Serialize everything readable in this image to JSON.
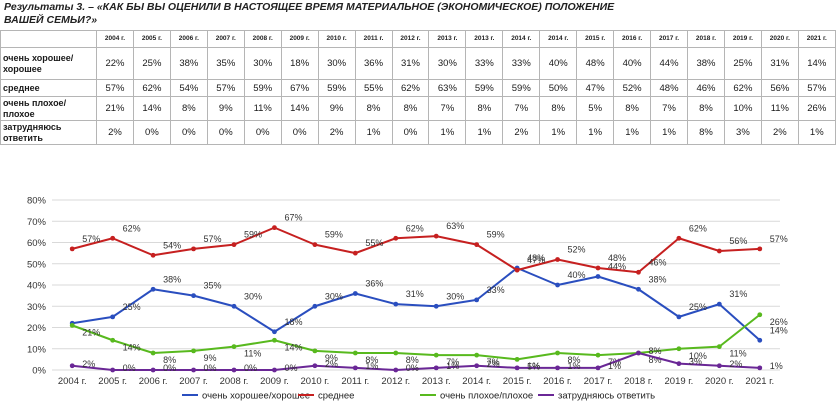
{
  "title": "Результаты 3. – «КАК БЫ ВЫ ОЦЕНИЛИ В НАСТОЯЩЕЕ ВРЕМЯ МАТЕРИАЛЬНОЕ (ЭКОНОМИЧЕСКОЕ) ПОЛОЖЕНИЕ ВАШЕЙ СЕМЬИ?»",
  "table": {
    "years": [
      "2004 г.",
      "2005 г.",
      "2006 г.",
      "2007 г.",
      "2008 г.",
      "2009 г.",
      "2010 г.",
      "2011 г.",
      "2012 г.",
      "2013 г.",
      "2013 г.",
      "2014 г.",
      "2014 г.",
      "2015 г.",
      "2016 г.",
      "2017 г.",
      "2018 г.",
      "2019 г.",
      "2020 г.",
      "2021 г."
    ],
    "rows": [
      {
        "label": "очень хорошее/хорошее",
        "values": [
          "22%",
          "25%",
          "38%",
          "35%",
          "30%",
          "18%",
          "30%",
          "36%",
          "31%",
          "30%",
          "33%",
          "33%",
          "40%",
          "48%",
          "40%",
          "44%",
          "38%",
          "25%",
          "31%",
          "14%"
        ]
      },
      {
        "label": "среднее",
        "values": [
          "57%",
          "62%",
          "54%",
          "57%",
          "59%",
          "67%",
          "59%",
          "55%",
          "62%",
          "63%",
          "59%",
          "59%",
          "50%",
          "47%",
          "52%",
          "48%",
          "46%",
          "62%",
          "56%",
          "57%"
        ]
      },
      {
        "label": "очень плохое/плохое",
        "values": [
          "21%",
          "14%",
          "8%",
          "9%",
          "11%",
          "14%",
          "9%",
          "8%",
          "8%",
          "7%",
          "8%",
          "7%",
          "8%",
          "5%",
          "8%",
          "7%",
          "8%",
          "10%",
          "11%",
          "26%"
        ]
      },
      {
        "label": "затрудняюсь ответить",
        "values": [
          "2%",
          "0%",
          "0%",
          "0%",
          "0%",
          "0%",
          "2%",
          "1%",
          "0%",
          "1%",
          "1%",
          "2%",
          "1%",
          "1%",
          "1%",
          "1%",
          "8%",
          "3%",
          "2%",
          "1%"
        ]
      }
    ]
  },
  "chart_data": {
    "type": "line",
    "x": [
      "2004 г.",
      "2005 г.",
      "2006 г.",
      "2007 г.",
      "2008 г.",
      "2009 г.",
      "2010 г.",
      "2011 г.",
      "2012 г.",
      "2013 г.",
      "2014 г.",
      "2015 г.",
      "2016 г.",
      "2017 г.",
      "2018 г.",
      "2019 г.",
      "2020 г.",
      "2021 г."
    ],
    "ylim": [
      0,
      80
    ],
    "yticks": [
      "0%",
      "10%",
      "20%",
      "30%",
      "40%",
      "50%",
      "60%",
      "70%",
      "80%"
    ],
    "grid": true,
    "legend_position": "bottom",
    "series": [
      {
        "name": "очень хорошее/хорошее",
        "color": "#2a4ebf",
        "values": [
          22,
          25,
          38,
          35,
          30,
          18,
          30,
          36,
          31,
          30,
          33,
          48,
          40,
          44,
          38,
          25,
          31,
          14
        ],
        "labels": [
          "",
          "25%",
          "38%",
          "35%",
          "30%",
          "18%",
          "30%",
          "36%",
          "31%",
          "30%",
          "33%",
          "48%",
          "40%",
          "44%",
          "38%",
          "25%",
          "31%",
          "14%"
        ]
      },
      {
        "name": "среднее",
        "color": "#c62020",
        "values": [
          57,
          62,
          54,
          57,
          59,
          67,
          59,
          55,
          62,
          63,
          59,
          47,
          52,
          48,
          46,
          62,
          56,
          57
        ],
        "labels": [
          "57%",
          "62%",
          "54%",
          "57%",
          "59%",
          "67%",
          "59%",
          "55%",
          "62%",
          "63%",
          "59%",
          "47%",
          "52%",
          "48%",
          "46%",
          "62%",
          "56%",
          "57%"
        ]
      },
      {
        "name": "очень плохое/плохое",
        "color": "#58b91e",
        "values": [
          21,
          14,
          8,
          9,
          11,
          14,
          9,
          8,
          8,
          7,
          7,
          5,
          8,
          7,
          8,
          10,
          11,
          26
        ],
        "labels": [
          "21%",
          "14%",
          "8%",
          "9%",
          "11%",
          "14%",
          "9%",
          "8%",
          "8%",
          "7%",
          "7%",
          "5%",
          "8%",
          "7%",
          "8%",
          "10%",
          "11%",
          "26%"
        ]
      },
      {
        "name": "затрудняюсь ответить",
        "color": "#6a2796",
        "values": [
          2,
          0,
          0,
          0,
          0,
          0,
          2,
          1,
          0,
          1,
          2,
          1,
          1,
          1,
          8,
          3,
          2,
          1
        ],
        "labels": [
          "2%",
          "0%",
          "0%",
          "0%",
          "0%",
          "0%",
          "2%",
          "1%",
          "0%",
          "1%",
          "2%",
          "1%",
          "1%",
          "1%",
          "8%",
          "3%",
          "2%",
          "1%"
        ]
      }
    ]
  }
}
